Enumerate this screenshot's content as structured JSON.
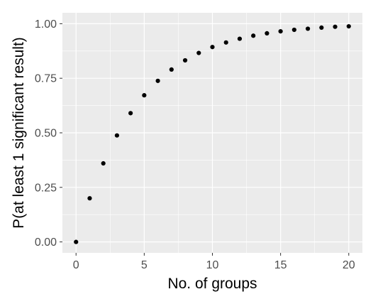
{
  "chart_data": {
    "type": "scatter",
    "title": "",
    "xlabel": "No. of groups",
    "ylabel": "P(at least 1 significant result)",
    "xlim": [
      -1,
      21
    ],
    "ylim": [
      -0.05,
      1.05
    ],
    "x_ticks": [
      0,
      5,
      10,
      15,
      20
    ],
    "x_tick_labels": [
      "0",
      "5",
      "10",
      "15",
      "20"
    ],
    "y_ticks": [
      0,
      0.25,
      0.5,
      0.75,
      1.0
    ],
    "y_tick_labels": [
      "0.00",
      "0.25",
      "0.50",
      "0.75",
      "1.00"
    ],
    "grid": true,
    "legend": "none",
    "panel_color": "#ebebeb",
    "grid_color": "#ffffff",
    "point_color": "#000000",
    "series": [
      {
        "x": [
          0,
          1,
          2,
          3,
          4,
          5,
          6,
          7,
          8,
          9,
          10,
          11,
          12,
          13,
          14,
          15,
          16,
          17,
          18,
          19,
          20
        ],
        "y": [
          0,
          0.2,
          0.36,
          0.488,
          0.59,
          0.672,
          0.738,
          0.79,
          0.832,
          0.866,
          0.893,
          0.914,
          0.931,
          0.945,
          0.956,
          0.965,
          0.972,
          0.977,
          0.982,
          0.986,
          0.988
        ]
      }
    ]
  }
}
